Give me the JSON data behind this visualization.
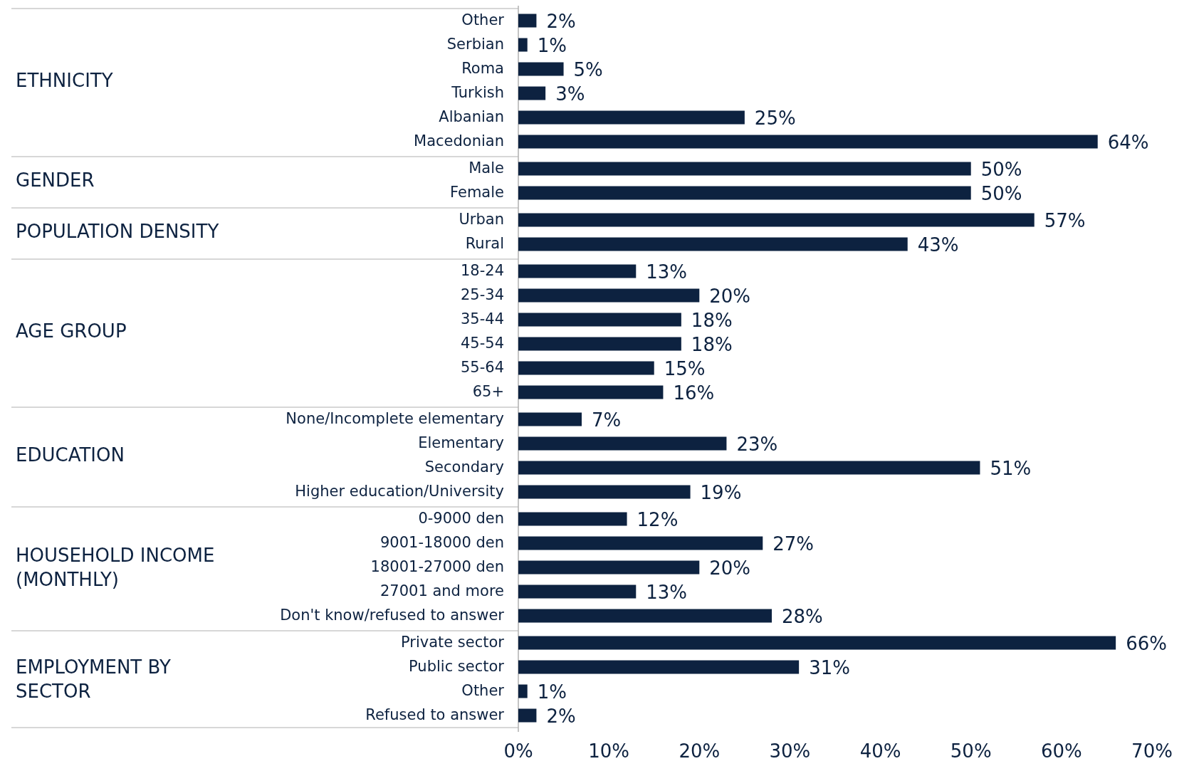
{
  "chart_data": [
    {
      "type": "bar",
      "orientation": "horizontal",
      "ylabel": "ETHNICITY",
      "categories": [
        "Other",
        "Serbian",
        "Roma",
        "Turkish",
        "Albanian",
        "Macedonian"
      ],
      "values": [
        2,
        1,
        5,
        3,
        25,
        64
      ],
      "value_labels": [
        "2%",
        "1%",
        "5%",
        "3%",
        "25%",
        "64%"
      ],
      "color": "#0d2240",
      "xlim": [
        0,
        70
      ],
      "tick_labels": "y"
    },
    {
      "type": "bar",
      "orientation": "horizontal",
      "ylabel": "GENDER",
      "categories": [
        "Male",
        "Female"
      ],
      "values": [
        50,
        50
      ],
      "value_labels": [
        "50%",
        "50%"
      ],
      "color": "#0d2240",
      "xlim": [
        0,
        70
      ],
      "tick_labels": "y"
    },
    {
      "type": "bar",
      "orientation": "horizontal",
      "ylabel": "POPULATION DENSITY",
      "categories": [
        "Urban",
        "Rural"
      ],
      "values": [
        57,
        43
      ],
      "value_labels": [
        "57%",
        "43%"
      ],
      "color": "#0d2240",
      "xlim": [
        0,
        70
      ],
      "tick_labels": "y"
    },
    {
      "type": "bar",
      "orientation": "horizontal",
      "ylabel": "AGE GROUP",
      "categories": [
        "18-24",
        "25-34",
        "35-44",
        "45-54",
        "55-64",
        "65+"
      ],
      "values": [
        13,
        20,
        18,
        18,
        15,
        16
      ],
      "value_labels": [
        "13%",
        "20%",
        "18%",
        "18%",
        "15%",
        "16%"
      ],
      "color": "#0d2240",
      "xlim": [
        0,
        70
      ],
      "tick_labels": "y"
    },
    {
      "type": "bar",
      "orientation": "horizontal",
      "ylabel": "EDUCATION",
      "categories": [
        "None/Incomplete elementary",
        "Elementary",
        "Secondary",
        "Higher education/University"
      ],
      "values": [
        7,
        23,
        51,
        19
      ],
      "value_labels": [
        "7%",
        "23%",
        "51%",
        "19%"
      ],
      "color": "#0d2240",
      "xlim": [
        0,
        70
      ],
      "tick_labels": "y"
    },
    {
      "type": "bar",
      "orientation": "horizontal",
      "ylabel": "HOUSEHOLD INCOME (MONTHLY)",
      "categories": [
        "0-9000 den",
        "9001-18000 den",
        "18001-27000 den",
        "27001 and more",
        "Don't know/refused to answer"
      ],
      "values": [
        12,
        27,
        20,
        13,
        28
      ],
      "value_labels": [
        "12%",
        "27%",
        "20%",
        "13%",
        "28%"
      ],
      "color": "#0d2240",
      "xlim": [
        0,
        70
      ],
      "tick_labels": "y"
    },
    {
      "type": "bar",
      "orientation": "horizontal",
      "ylabel": "EMPLOYMENT BY SECTOR",
      "categories": [
        "Private sector",
        "Public sector",
        "Other",
        "Refused to answer"
      ],
      "values": [
        66,
        31,
        1,
        2
      ],
      "value_labels": [
        "66%",
        "31%",
        "1%",
        "2%"
      ],
      "color": "#0d2240",
      "xlim": [
        0,
        70
      ],
      "xticks": [
        {
          "value": 0,
          "label": "0%"
        },
        {
          "value": 10,
          "label": "10%"
        },
        {
          "value": 20,
          "label": "20%"
        },
        {
          "value": 30,
          "label": "30%"
        },
        {
          "value": 40,
          "label": "40%"
        },
        {
          "value": 50,
          "label": "50%"
        },
        {
          "value": 60,
          "label": "60%"
        },
        {
          "value": 70,
          "label": "70%"
        }
      ]
    }
  ]
}
